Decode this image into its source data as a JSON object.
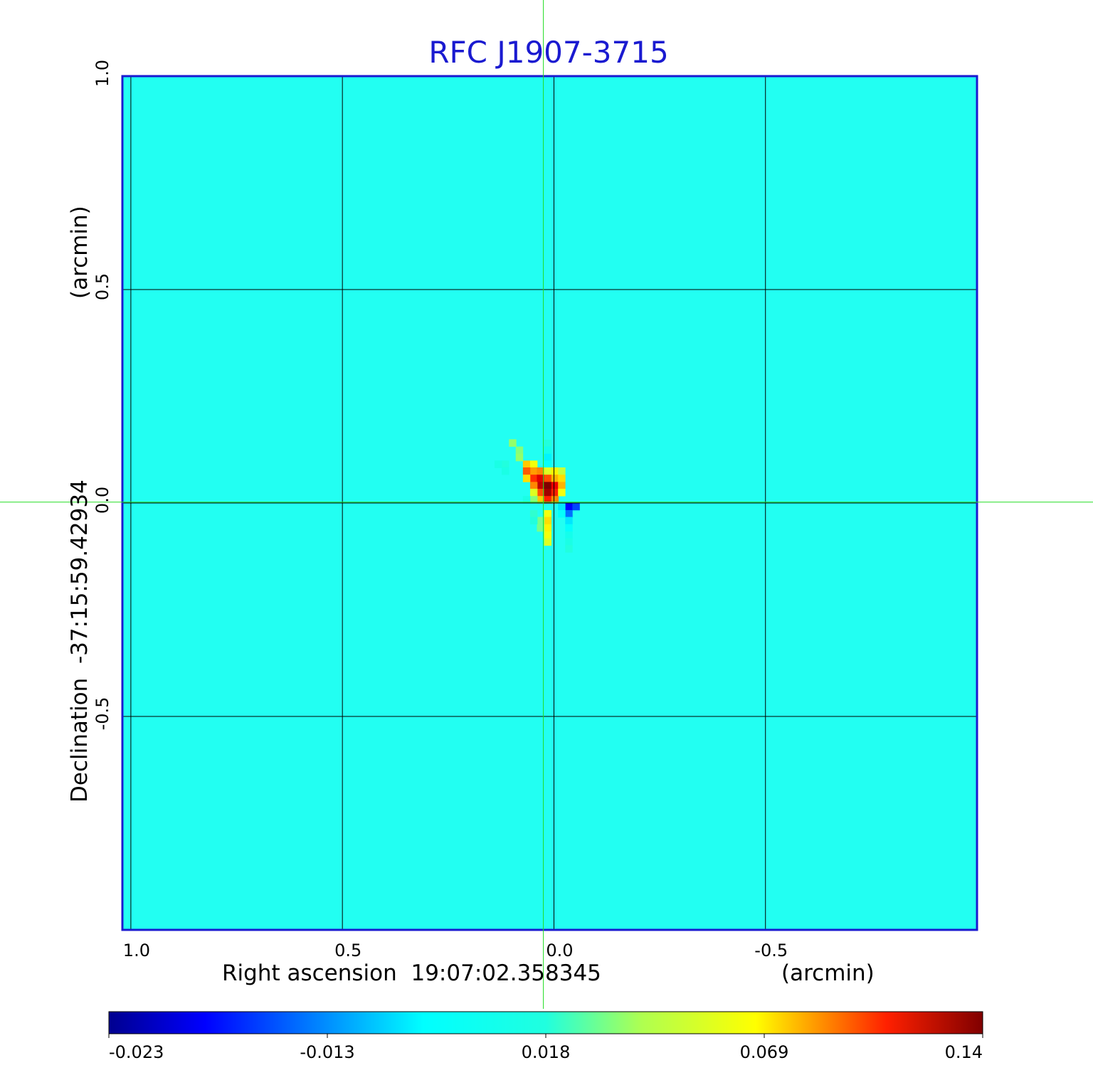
{
  "chart_data": {
    "type": "heatmap",
    "title": "RFC J1907-3715",
    "xlabel": "Right ascension  19:07:02.358345",
    "xunit": "(arcmin)",
    "ylabel": "Declination  -37:15:59.42934",
    "yunit": "(arcmin)",
    "xlim": [
      1.02,
      -1.0
    ],
    "ylim": [
      -1.0,
      1.0
    ],
    "x_ticks": [
      {
        "value": 1.0,
        "label": "1.0"
      },
      {
        "value": 0.5,
        "label": "0.5"
      },
      {
        "value": 0.0,
        "label": "0.0"
      },
      {
        "value": -0.5,
        "label": "-0.5"
      }
    ],
    "y_ticks": [
      {
        "value": 1.0,
        "label": "1.0"
      },
      {
        "value": 0.5,
        "label": "0.5"
      },
      {
        "value": 0.0,
        "label": "0.0"
      },
      {
        "value": -0.5,
        "label": "-0.5"
      }
    ],
    "grid": true,
    "crosshair": {
      "x": 0.025,
      "y": 0.002
    },
    "colorbar": {
      "orientation": "horizontal",
      "position": "bottom",
      "colormap": "jet",
      "min": -0.023,
      "max": 0.14,
      "ticks": [
        {
          "frac": 0.0,
          "label": "-0.023"
        },
        {
          "frac": 0.25,
          "label": "-0.013"
        },
        {
          "frac": 0.5,
          "label": "0.018"
        },
        {
          "frac": 0.75,
          "label": "0.069"
        },
        {
          "frac": 1.0,
          "label": "0.14"
        }
      ]
    },
    "background_value": 0.0,
    "pixel_size": 0.0167,
    "source_pixels": [
      {
        "x": 0.015,
        "y": 0.14,
        "v": -0.004
      },
      {
        "x": 0.015,
        "y": 0.124,
        "v": -0.006
      },
      {
        "x": 0.015,
        "y": 0.107,
        "v": -0.01
      },
      {
        "x": 0.015,
        "y": 0.091,
        "v": -0.008
      },
      {
        "x": 0.065,
        "y": 0.091,
        "v": 0.045
      },
      {
        "x": 0.048,
        "y": 0.091,
        "v": 0.03
      },
      {
        "x": 0.048,
        "y": 0.075,
        "v": 0.055
      },
      {
        "x": 0.032,
        "y": 0.075,
        "v": 0.06
      },
      {
        "x": 0.065,
        "y": 0.075,
        "v": 0.07
      },
      {
        "x": 0.015,
        "y": 0.075,
        "v": 0.025
      },
      {
        "x": -0.002,
        "y": 0.075,
        "v": 0.035
      },
      {
        "x": -0.018,
        "y": 0.075,
        "v": 0.02
      },
      {
        "x": 0.048,
        "y": 0.058,
        "v": 0.085
      },
      {
        "x": 0.032,
        "y": 0.058,
        "v": 0.11
      },
      {
        "x": 0.015,
        "y": 0.058,
        "v": 0.075
      },
      {
        "x": -0.002,
        "y": 0.058,
        "v": 0.05
      },
      {
        "x": -0.018,
        "y": 0.058,
        "v": 0.04
      },
      {
        "x": 0.065,
        "y": 0.058,
        "v": 0.04
      },
      {
        "x": 0.032,
        "y": 0.041,
        "v": 0.12
      },
      {
        "x": 0.015,
        "y": 0.041,
        "v": 0.14
      },
      {
        "x": -0.002,
        "y": 0.041,
        "v": 0.105
      },
      {
        "x": -0.018,
        "y": 0.041,
        "v": 0.05
      },
      {
        "x": 0.048,
        "y": 0.041,
        "v": 0.06
      },
      {
        "x": 0.032,
        "y": 0.025,
        "v": 0.075
      },
      {
        "x": 0.015,
        "y": 0.025,
        "v": 0.13
      },
      {
        "x": -0.002,
        "y": 0.025,
        "v": 0.09
      },
      {
        "x": -0.018,
        "y": 0.025,
        "v": 0.03
      },
      {
        "x": 0.048,
        "y": 0.025,
        "v": 0.025
      },
      {
        "x": 0.032,
        "y": 0.008,
        "v": 0.045
      },
      {
        "x": 0.015,
        "y": 0.008,
        "v": 0.09
      },
      {
        "x": -0.002,
        "y": 0.008,
        "v": 0.06
      },
      {
        "x": 0.048,
        "y": 0.008,
        "v": 0.01
      },
      {
        "x": 0.065,
        "y": 0.008,
        "v": -0.005
      },
      {
        "x": -0.035,
        "y": -0.008,
        "v": -0.023
      },
      {
        "x": -0.052,
        "y": -0.008,
        "v": -0.02
      },
      {
        "x": -0.018,
        "y": -0.008,
        "v": -0.012
      },
      {
        "x": -0.035,
        "y": -0.025,
        "v": -0.018
      },
      {
        "x": -0.018,
        "y": -0.025,
        "v": -0.008
      },
      {
        "x": -0.035,
        "y": -0.041,
        "v": -0.012
      },
      {
        "x": 0.015,
        "y": -0.025,
        "v": 0.03
      },
      {
        "x": 0.015,
        "y": -0.041,
        "v": 0.04
      },
      {
        "x": 0.015,
        "y": -0.058,
        "v": 0.035
      },
      {
        "x": 0.015,
        "y": -0.075,
        "v": 0.03
      },
      {
        "x": 0.015,
        "y": -0.091,
        "v": 0.025
      },
      {
        "x": 0.032,
        "y": -0.041,
        "v": 0.008
      },
      {
        "x": 0.032,
        "y": -0.058,
        "v": 0.008
      },
      {
        "x": 0.048,
        "y": -0.025,
        "v": -0.002
      },
      {
        "x": 0.048,
        "y": -0.041,
        "v": -0.004
      },
      {
        "x": -0.035,
        "y": -0.058,
        "v": -0.008
      },
      {
        "x": -0.035,
        "y": -0.075,
        "v": -0.006
      },
      {
        "x": -0.035,
        "y": -0.091,
        "v": -0.005
      },
      {
        "x": -0.035,
        "y": -0.107,
        "v": -0.004
      },
      {
        "x": 0.115,
        "y": 0.091,
        "v": -0.004
      },
      {
        "x": 0.132,
        "y": 0.091,
        "v": -0.005
      },
      {
        "x": 0.115,
        "y": 0.075,
        "v": -0.005
      },
      {
        "x": 0.082,
        "y": 0.124,
        "v": 0.01
      },
      {
        "x": 0.098,
        "y": 0.141,
        "v": 0.012
      },
      {
        "x": 0.082,
        "y": 0.107,
        "v": 0.012
      }
    ]
  }
}
